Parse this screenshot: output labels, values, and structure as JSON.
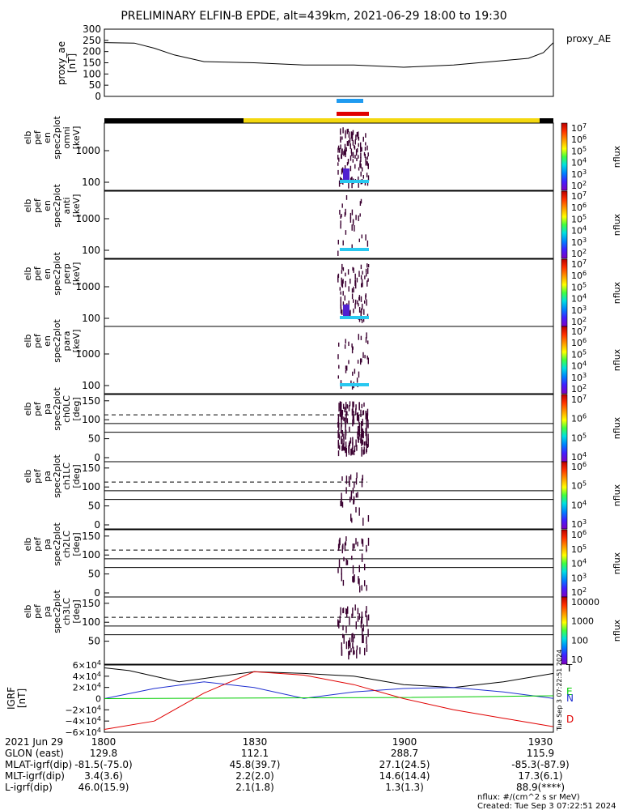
{
  "title": "PRELIMINARY ELFIN-B EPDE, alt=439km, 2021-06-29 18:00 to 19:30",
  "proxy": {
    "ylabel": [
      "proxy_ae",
      "[nT]"
    ],
    "yticks": [
      "0",
      "50",
      "100",
      "150",
      "200",
      "250",
      "300"
    ],
    "legend": "proxy_AE"
  },
  "spec_panels": [
    {
      "ylabel": [
        "elb",
        "pef",
        "en",
        "spec2plot",
        "omni",
        "[keV]"
      ],
      "yticks": [
        "100",
        "1000"
      ],
      "cb_ticks": [
        "10^7",
        "10^6",
        "10^5",
        "10^4",
        "10^3",
        "10^2"
      ],
      "cb_label": "nflux"
    },
    {
      "ylabel": [
        "elb",
        "pef",
        "en",
        "spec2plot",
        "anti",
        "[keV]"
      ],
      "yticks": [
        "100",
        "1000"
      ],
      "cb_ticks": [
        "10^7",
        "10^6",
        "10^5",
        "10^4",
        "10^3",
        "10^2"
      ],
      "cb_label": "nflux"
    },
    {
      "ylabel": [
        "elb",
        "pef",
        "en",
        "spec2plot",
        "perp",
        "[keV]"
      ],
      "yticks": [
        "100",
        "1000"
      ],
      "cb_ticks": [
        "10^7",
        "10^6",
        "10^5",
        "10^4",
        "10^3",
        "10^2"
      ],
      "cb_label": "nflux"
    },
    {
      "ylabel": [
        "elb",
        "pef",
        "en",
        "spec2plot",
        "para",
        "[keV]"
      ],
      "yticks": [
        "100",
        "1000"
      ],
      "cb_ticks": [
        "10^7",
        "10^6",
        "10^5",
        "10^4",
        "10^3",
        "10^2"
      ],
      "cb_label": "nflux"
    }
  ],
  "pa_panels": [
    {
      "ylabel": [
        "elb",
        "pef",
        "pa",
        "spec2plot",
        "ch0LC",
        "[deg]"
      ],
      "yticks": [
        "0",
        "50",
        "100",
        "150"
      ],
      "cb_ticks": [
        "10^7",
        "10^6",
        "10^5",
        "10^4"
      ],
      "cb_label": "nflux"
    },
    {
      "ylabel": [
        "elb",
        "pef",
        "pa",
        "spec2plot",
        "ch1LC",
        "[deg]"
      ],
      "yticks": [
        "0",
        "50",
        "100",
        "150"
      ],
      "cb_ticks": [
        "10^6",
        "10^5",
        "10^4",
        "10^3"
      ],
      "cb_label": "nflux"
    },
    {
      "ylabel": [
        "elb",
        "pef",
        "pa",
        "spec2plot",
        "ch2LC",
        "[deg]"
      ],
      "yticks": [
        "0",
        "50",
        "100",
        "150"
      ],
      "cb_ticks": [
        "10^6",
        "10^5",
        "10^4",
        "10^3",
        "10^2"
      ],
      "cb_label": "nflux"
    },
    {
      "ylabel": [
        "elb",
        "pef",
        "pa",
        "spec2plot",
        "ch3LC",
        "[deg]"
      ],
      "yticks": [
        "50",
        "100",
        "150"
      ],
      "cb_ticks": [
        "10000",
        "1000",
        "100",
        "10"
      ],
      "cb_label": "nflux"
    }
  ],
  "igrf": {
    "ylabel": [
      "IGRF",
      "[nT]"
    ],
    "yticks": [
      "6×10^4",
      "4×10^4",
      "2×10^4",
      "0",
      "−2×10^4",
      "−4×10^4",
      "−6×10^4"
    ],
    "legend": [
      {
        "name": "T",
        "color": "#000000"
      },
      {
        "name": "E",
        "color": "#00cc00"
      },
      {
        "name": "N",
        "color": "#1f2fd0"
      },
      {
        "name": "D",
        "color": "#e00000"
      }
    ],
    "side_text": "Tue Sep 3 07:22:51 2024"
  },
  "chart_data": {
    "type": "line",
    "x_range_minutes": [
      0,
      90
    ],
    "proxy_ae": {
      "x": [
        0,
        6,
        10,
        14,
        20,
        30,
        40,
        50,
        60,
        70,
        80,
        85,
        88,
        90
      ],
      "y": [
        240,
        238,
        215,
        185,
        155,
        150,
        140,
        140,
        130,
        140,
        160,
        170,
        195,
        240
      ],
      "ylim": [
        0,
        300
      ]
    },
    "igrf_series": [
      {
        "name": "T",
        "x": [
          0,
          5,
          15,
          30,
          40,
          50,
          60,
          70,
          80,
          90
        ],
        "y": [
          55000,
          50000,
          30000,
          48000,
          45000,
          40000,
          25000,
          20000,
          30000,
          45000
        ]
      },
      {
        "name": "N",
        "x": [
          0,
          10,
          20,
          30,
          40,
          50,
          60,
          70,
          80,
          90
        ],
        "y": [
          0,
          18000,
          30000,
          20000,
          500,
          12000,
          18000,
          20000,
          12000,
          500
        ]
      },
      {
        "name": "E",
        "x": [
          0,
          30,
          60,
          80,
          90
        ],
        "y": [
          0,
          1000,
          2000,
          4000,
          5000
        ]
      },
      {
        "name": "D",
        "x": [
          0,
          10,
          20,
          30,
          40,
          50,
          60,
          70,
          80,
          90
        ],
        "y": [
          -55000,
          -40000,
          10000,
          48000,
          42000,
          25000,
          0,
          -20000,
          -35000,
          -50000
        ]
      }
    ],
    "igrf_ylim": [
      -60000,
      60000
    ]
  },
  "bottom_table": {
    "rows": [
      {
        "label": "2021 Jun 29",
        "vals": [
          "1800",
          "1830",
          "1900",
          "1930"
        ]
      },
      {
        "label": "GLON (east)",
        "vals": [
          "129.8",
          "112.1",
          "288.7",
          "115.9"
        ]
      },
      {
        "label": "MLAT-igrf(dip)",
        "vals": [
          "-81.5(-75.0)",
          "45.8(39.7)",
          "27.1(24.5)",
          "-85.3(-87.9)"
        ]
      },
      {
        "label": "MLT-igrf(dip)",
        "vals": [
          "3.4(3.6)",
          "2.2(2.0)",
          "14.6(14.4)",
          "17.3(6.1)"
        ]
      },
      {
        "label": "L-igrf(dip)",
        "vals": [
          "46.0(15.9)",
          "2.1(1.8)",
          "1.3(1.3)",
          "88.9(****)"
        ]
      }
    ],
    "footer": [
      "nflux: #/(cm^2 s sr MeV)",
      "Created: Tue Sep  3 07:22:51 2024"
    ]
  }
}
